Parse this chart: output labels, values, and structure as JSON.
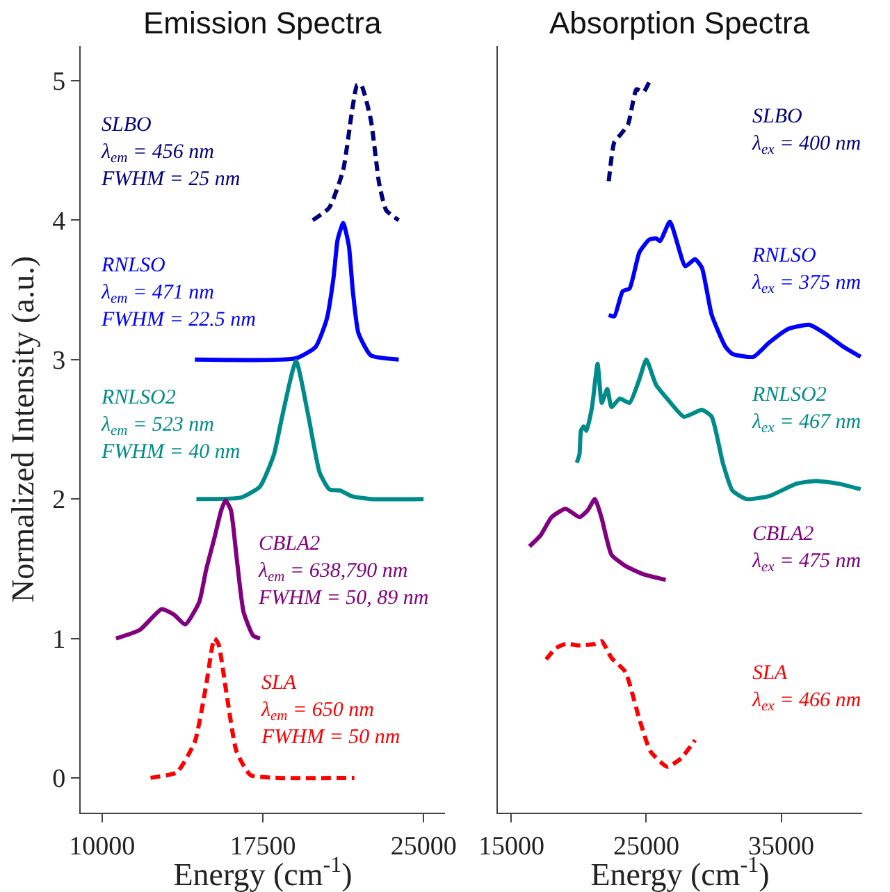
{
  "chart_data": [
    {
      "type": "line",
      "title": "Emission Spectra",
      "xlabel": "Energy (cm$^{-1}$)",
      "ylabel": "Normalized Intensity (a.u.)",
      "xlim": [
        9000,
        26000
      ],
      "xticks": [
        10000,
        17500,
        25000
      ],
      "ylim": [
        -0.25,
        5.25
      ],
      "yticks": [
        0,
        1,
        2,
        3,
        4,
        5
      ],
      "series": [
        {
          "color": "#000080",
          "line_style": "dashed",
          "x": [
            19830,
            20600,
            21250,
            21640,
            21900,
            22090,
            22540,
            22930,
            23260,
            23840
          ],
          "values": [
            4.0,
            4.09,
            4.36,
            4.76,
            4.97,
            4.97,
            4.72,
            4.26,
            4.07,
            4.0
          ]
        },
        {
          "color": "#0000ff",
          "line_style": "solid",
          "x": [
            14330,
            19050,
            19960,
            20480,
            20800,
            20990,
            21250,
            21510,
            21700,
            21960,
            22540,
            23840
          ],
          "values": [
            3.0,
            3.01,
            3.09,
            3.29,
            3.59,
            3.86,
            3.98,
            3.82,
            3.49,
            3.19,
            3.03,
            3.0
          ]
        },
        {
          "color": "#008b8b",
          "line_style": "solid",
          "x": [
            14400,
            16470,
            17370,
            18020,
            18400,
            19050,
            19630,
            20150,
            20600,
            21120,
            21640,
            22540,
            25000
          ],
          "values": [
            2.0,
            2.01,
            2.09,
            2.32,
            2.59,
            2.99,
            2.59,
            2.19,
            2.07,
            2.06,
            2.02,
            2.0,
            2.0
          ]
        },
        {
          "color": "#800080",
          "line_style": "solid",
          "x": [
            10650,
            11750,
            12780,
            13360,
            13880,
            14530,
            14850,
            15240,
            15560,
            15760,
            16010,
            16270,
            16600,
            17050,
            17370
          ],
          "values": [
            1.0,
            1.06,
            1.21,
            1.17,
            1.1,
            1.26,
            1.49,
            1.72,
            1.92,
            1.99,
            1.92,
            1.59,
            1.19,
            1.02,
            1.0
          ]
        },
        {
          "color": "#ff0000",
          "line_style": "dashed",
          "x": [
            12260,
            13490,
            14330,
            14850,
            15240,
            15430,
            15820,
            16270,
            16920,
            18210,
            21770
          ],
          "values": [
            0.0,
            0.04,
            0.26,
            0.66,
            1.0,
            0.96,
            0.59,
            0.19,
            0.02,
            0.0,
            0.0
          ]
        }
      ],
      "annotations": [
        "SLBO\nλ$_{em}$ = 456 nm\nFWHM = 25 nm",
        "RNLSO\nλ$_{em}$ = 471 nm\nFWHM = 22.5 nm",
        "RNLSO2\nλ$_{em}$ = 523 nm\nFWHM = 40 nm",
        "CBLA2\nλ$_{em}$ = 638,790 nm\nFWHM = 50, 89 nm",
        "SLA\nλ$_{em}$ = 650 nm\nFWHM = 50 nm"
      ]
    },
    {
      "type": "line",
      "title": "Absorption Spectra",
      "xlabel": "Energy (cm$^{-1}$)",
      "xlim": [
        14000,
        41000
      ],
      "xticks": [
        15000,
        25000,
        35000
      ],
      "ylim": [
        -0.25,
        5.25
      ],
      "tick_labels": "x",
      "series": [
        {
          "color": "#000080",
          "line_style": "dashed",
          "x": [
            22220,
            22630,
            23140,
            23660,
            24280,
            24800,
            25210
          ],
          "values": [
            4.28,
            4.56,
            4.62,
            4.69,
            4.94,
            4.92,
            4.99
          ]
        },
        {
          "color": "#0000ff",
          "line_style": "solid",
          "x": [
            22220,
            22630,
            23250,
            23760,
            24490,
            25210,
            25720,
            26030,
            26750,
            27890,
            28610,
            29120,
            29850,
            30880,
            31390,
            32940,
            34080,
            35520,
            37070,
            38200,
            39640,
            40880
          ],
          "values": [
            3.32,
            3.31,
            3.49,
            3.51,
            3.77,
            3.86,
            3.87,
            3.85,
            3.99,
            3.67,
            3.72,
            3.66,
            3.32,
            3.09,
            3.04,
            3.02,
            3.12,
            3.22,
            3.25,
            3.19,
            3.09,
            3.02
          ]
        },
        {
          "color": "#008b8b",
          "line_style": "solid",
          "x": [
            19850,
            20050,
            20160,
            20360,
            20570,
            20980,
            21390,
            21700,
            22110,
            22420,
            23040,
            23760,
            24490,
            25000,
            25720,
            26550,
            27790,
            29120,
            29850,
            30670,
            31390,
            32420,
            34080,
            36140,
            37580,
            39230,
            40880
          ],
          "values": [
            2.26,
            2.32,
            2.49,
            2.52,
            2.49,
            2.66,
            2.97,
            2.69,
            2.79,
            2.66,
            2.72,
            2.69,
            2.86,
            3.0,
            2.82,
            2.72,
            2.59,
            2.64,
            2.59,
            2.26,
            2.06,
            2.0,
            2.02,
            2.11,
            2.13,
            2.11,
            2.07
          ]
        },
        {
          "color": "#800080",
          "line_style": "solid",
          "x": [
            16340,
            17170,
            17990,
            19020,
            20050,
            20670,
            21190,
            21700,
            22420,
            23450,
            24800,
            26440
          ],
          "values": [
            1.66,
            1.74,
            1.87,
            1.93,
            1.87,
            1.92,
            2.0,
            1.86,
            1.6,
            1.52,
            1.46,
            1.42
          ]
        },
        {
          "color": "#ff0000",
          "line_style": "dashed",
          "x": [
            17580,
            18300,
            19020,
            20050,
            21190,
            21700,
            22420,
            23450,
            24490,
            25310,
            26550,
            27580,
            28610
          ],
          "values": [
            0.85,
            0.93,
            0.96,
            0.95,
            0.96,
            0.98,
            0.86,
            0.76,
            0.42,
            0.19,
            0.08,
            0.14,
            0.27
          ]
        }
      ],
      "annotations": [
        "SLBO\nλ$_{ex}$ = 400 nm",
        "RNLSO\nλ$_{ex}$ = 375 nm",
        "RNLSO2\nλ$_{ex}$ = 467 nm",
        "CBLA2\nλ$_{ex}$ = 475 nm",
        "SLA\nλ$_{ex}$ = 466 nm"
      ]
    }
  ]
}
